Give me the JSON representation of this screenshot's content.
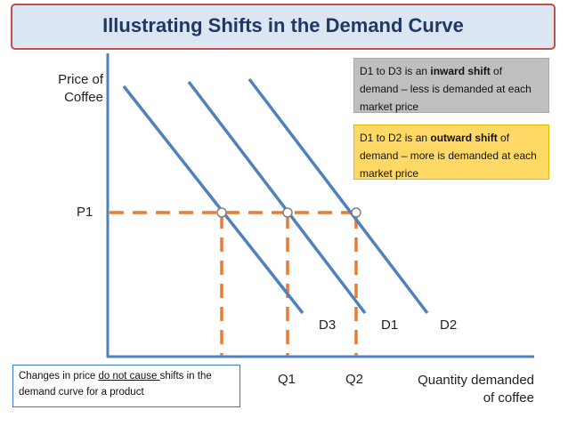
{
  "title": "Illustrating Shifts in the Demand Curve",
  "y_axis_label": [
    "Price of",
    "Coffee"
  ],
  "x_axis_label": [
    "Quantity demanded",
    "of coffee"
  ],
  "price_tick": "P1",
  "quantity_ticks": {
    "q1": "Q1",
    "q2": "Q2"
  },
  "curves": {
    "d1": "D1",
    "d2": "D2",
    "d3": "D3"
  },
  "notes": {
    "inward": {
      "before": "D1 to D3 is an ",
      "bold": "inward shift",
      "after": " of demand – less is demanded at each market price"
    },
    "outward": {
      "before": "D1 to D2 is an ",
      "bold": "outward shift",
      "after": " of demand – more is demanded at each market price"
    },
    "bottom": {
      "before": "Changes in price ",
      "underlined": "do not cause ",
      "after": "shifts in the demand curve for a product"
    }
  },
  "colors": {
    "curve": "#4f81bd",
    "guide": "#e97c30",
    "axis": "#4f81bd",
    "title_fill": "#dce6f2",
    "title_border": "#c0504d",
    "inward_note": "#bfbfbf",
    "outward_note": "#ffd966"
  }
}
